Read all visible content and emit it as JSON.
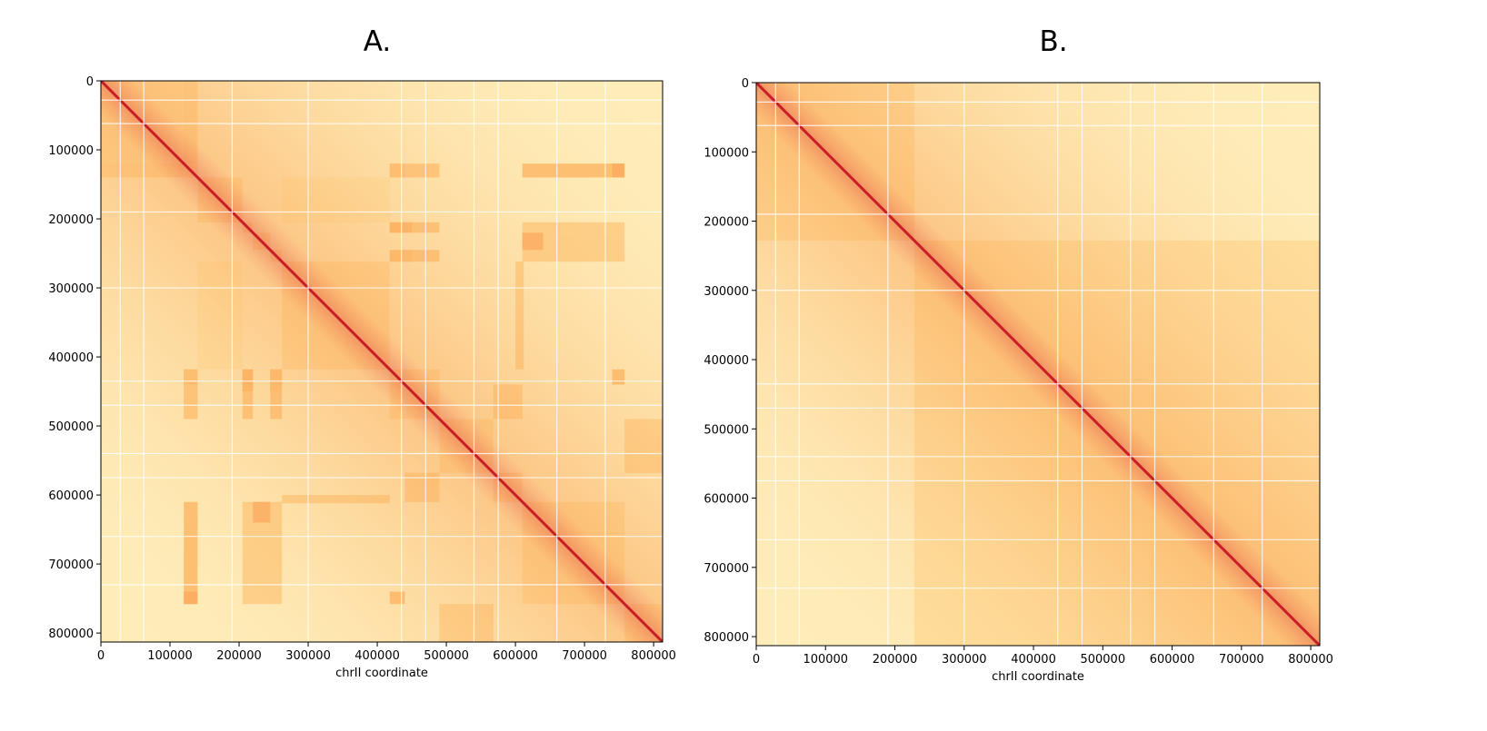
{
  "chart_data": [
    {
      "type": "heatmap",
      "panel_label": "A.",
      "title": "A.",
      "xlabel": "chrII coordinate",
      "ylabel": "",
      "xlim": [
        0,
        813000
      ],
      "ylim": [
        0,
        813000
      ],
      "y_inverted": true,
      "x_ticks": [
        0,
        100000,
        200000,
        300000,
        400000,
        500000,
        600000,
        700000,
        800000
      ],
      "y_ticks": [
        0,
        100000,
        200000,
        300000,
        400000,
        500000,
        600000,
        700000,
        800000
      ],
      "x_tick_labels": [
        "0",
        "100000",
        "200000",
        "300000",
        "400000",
        "500000",
        "600000",
        "700000",
        "800000"
      ],
      "y_tick_labels": [
        "0",
        "100000",
        "200000",
        "300000",
        "400000",
        "500000",
        "600000",
        "700000",
        "800000"
      ],
      "colormap": "YlOrRd",
      "domain_boundaries": [
        0,
        120000,
        140000,
        205000,
        220000,
        245000,
        262000,
        418000,
        490000,
        568000,
        610000,
        758000,
        813000
      ],
      "blocks": [
        {
          "x": [
            120000,
            140000
          ],
          "y": [
            0,
            120000
          ],
          "level": 0.35
        },
        {
          "x": [
            490000,
            568000
          ],
          "y": [
            758000,
            813000
          ],
          "level": 0.35
        },
        {
          "x": [
            758000,
            813000
          ],
          "y": [
            490000,
            568000
          ],
          "level": 0.35
        },
        {
          "x": [
            418000,
            490000
          ],
          "y": [
            120000,
            140000
          ],
          "level": 0.45
        },
        {
          "x": [
            418000,
            490000
          ],
          "y": [
            205000,
            220000
          ],
          "level": 0.45
        },
        {
          "x": [
            418000,
            490000
          ],
          "y": [
            245000,
            262000
          ],
          "level": 0.45
        },
        {
          "x": [
            610000,
            758000
          ],
          "y": [
            120000,
            140000
          ],
          "level": 0.5
        },
        {
          "x": [
            610000,
            758000
          ],
          "y": [
            205000,
            220000
          ],
          "level": 0.4
        },
        {
          "x": [
            610000,
            758000
          ],
          "y": [
            220000,
            262000
          ],
          "level": 0.4
        },
        {
          "x": [
            120000,
            140000
          ],
          "y": [
            418000,
            440000
          ],
          "level": 0.45
        },
        {
          "x": [
            120000,
            140000
          ],
          "y": [
            740000,
            758000
          ],
          "level": 0.55
        },
        {
          "x": [
            205000,
            220000
          ],
          "y": [
            418000,
            450000
          ],
          "level": 0.5
        },
        {
          "x": [
            220000,
            245000
          ],
          "y": [
            610000,
            640000
          ],
          "level": 0.55
        },
        {
          "x": [
            245000,
            262000
          ],
          "y": [
            418000,
            450000
          ],
          "level": 0.45
        },
        {
          "x": [
            418000,
            440000
          ],
          "y": [
            740000,
            758000
          ],
          "level": 0.5
        },
        {
          "x": [
            262000,
            418000
          ],
          "y": [
            140000,
            205000
          ],
          "level": 0.3
        },
        {
          "x": [
            140000,
            205000
          ],
          "y": [
            262000,
            418000
          ],
          "level": 0.25
        },
        {
          "x": [
            262000,
            418000
          ],
          "y": [
            600000,
            612000
          ],
          "level": 0.4
        },
        {
          "x": [
            568000,
            610000
          ],
          "y": [
            440000,
            490000
          ],
          "level": 0.4
        },
        {
          "x": [
            440000,
            490000
          ],
          "y": [
            568000,
            610000
          ],
          "level": 0.35
        }
      ]
    },
    {
      "type": "heatmap",
      "panel_label": "B.",
      "title": "B.",
      "xlabel": "chrII coordinate",
      "ylabel": "",
      "xlim": [
        0,
        813000
      ],
      "ylim": [
        0,
        813000
      ],
      "y_inverted": true,
      "x_ticks": [
        0,
        100000,
        200000,
        300000,
        400000,
        500000,
        600000,
        700000,
        800000
      ],
      "y_ticks": [
        0,
        100000,
        200000,
        300000,
        400000,
        500000,
        600000,
        700000,
        800000
      ],
      "x_tick_labels": [
        "0",
        "100000",
        "200000",
        "300000",
        "400000",
        "500000",
        "600000",
        "700000",
        "800000"
      ],
      "y_tick_labels": [
        "0",
        "100000",
        "200000",
        "300000",
        "400000",
        "500000",
        "600000",
        "700000",
        "800000"
      ],
      "colormap": "YlOrRd",
      "domain_boundaries": [
        0,
        228000,
        813000
      ],
      "blocks": []
    }
  ],
  "colors": {
    "background_light": "#fff6d9",
    "low": "#fee8a8",
    "mid": "#fdb25c",
    "high": "#f16a3a",
    "diagonal": "#c9202a",
    "gap": "#ffffff"
  }
}
